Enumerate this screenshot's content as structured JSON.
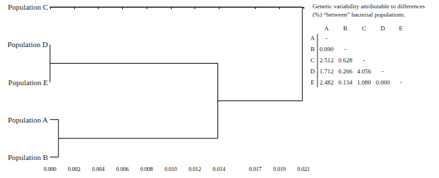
{
  "chart_data": {
    "type": "dendrogram",
    "leaves": [
      "Population C",
      "Population D",
      "Population E",
      "Population A",
      "Population B"
    ],
    "linkage": [
      [
        1,
        2,
        0.0
      ],
      [
        3,
        4,
        0.0007
      ],
      [
        5,
        6,
        0.0139
      ],
      [
        0,
        7,
        0.0209
      ]
    ],
    "color": "#000000",
    "xlim": [
      0,
      0.021
    ],
    "xticks": [
      {
        "value": 0,
        "label": "0.000"
      },
      0.002,
      0.004,
      0.006,
      0.008,
      {
        "value": 0.01,
        "label": "0.010"
      },
      0.012,
      0.014,
      0.017,
      0.019,
      0.021
    ]
  },
  "table": {
    "title_lines": [
      "Genetic variability attributable to differences",
      "(%) “between” bacterial populations."
    ],
    "columns": [
      "A",
      "B",
      "C",
      "D",
      "E"
    ],
    "rows": [
      {
        "label": "A",
        "cells": [
          "-"
        ]
      },
      {
        "label": "B",
        "cells": [
          "0.090",
          "-"
        ]
      },
      {
        "label": "C",
        "cells": [
          "2.512",
          "0.628",
          "-"
        ]
      },
      {
        "label": "D",
        "cells": [
          "1.712",
          "0.266",
          "4.056",
          "-"
        ]
      },
      {
        "label": "E",
        "cells": [
          "2.482",
          "0.134",
          "1.080",
          "0.000",
          "-"
        ]
      }
    ]
  }
}
